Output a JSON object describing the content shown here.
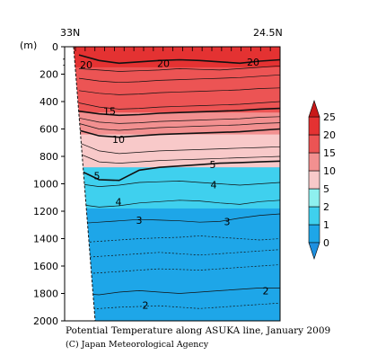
{
  "chart_data": {
    "type": "contour",
    "x_endpoints": [
      "33N",
      "24.5N"
    ],
    "y_unit": "(m)",
    "y_range": [
      0,
      2000
    ],
    "y_ticks": [
      0,
      200,
      400,
      600,
      800,
      1000,
      1200,
      1400,
      1600,
      1800,
      2000
    ],
    "y_inverted": true,
    "contour_labels": [
      {
        "value": "20",
        "depth": 130
      },
      {
        "value": "20",
        "depth": 120
      },
      {
        "value": "20",
        "depth": 110
      },
      {
        "value": "15",
        "depth": 470
      },
      {
        "value": "10",
        "depth": 675
      },
      {
        "value": "5",
        "depth": 860
      },
      {
        "value": "5",
        "depth": 940
      },
      {
        "value": "4",
        "depth": 1005
      },
      {
        "value": "4",
        "depth": 1130
      },
      {
        "value": "3",
        "depth": 1265
      },
      {
        "value": "3",
        "depth": 1275
      },
      {
        "value": "2",
        "depth": 1780
      },
      {
        "value": "2",
        "depth": 1885
      },
      {
        "value": "15",
        "depth": 110
      }
    ],
    "colorbar": {
      "levels": [
        "0",
        "1",
        "2",
        "5",
        "10",
        "15",
        "20",
        "25"
      ],
      "bands": [
        {
          "from": 0,
          "to": 1,
          "color": "#1ea6e8"
        },
        {
          "from": 1,
          "to": 2,
          "color": "#3fd0ee"
        },
        {
          "from": 2,
          "to": 5,
          "color": "#8ef0ef"
        },
        {
          "from": 5,
          "to": 10,
          "color": "#f8c9c9"
        },
        {
          "from": 10,
          "to": 15,
          "color": "#f29090"
        },
        {
          "from": 15,
          "to": 20,
          "color": "#ec5454"
        },
        {
          "from": 20,
          "to": 25,
          "color": "#e43232"
        }
      ],
      "below_color": "#1e90e0",
      "above_color": "#c81818"
    }
  },
  "caption": {
    "title": "Potential Temperature along ASUKA line, January 2009",
    "credit": "(C) Japan Meteorological Agency"
  }
}
